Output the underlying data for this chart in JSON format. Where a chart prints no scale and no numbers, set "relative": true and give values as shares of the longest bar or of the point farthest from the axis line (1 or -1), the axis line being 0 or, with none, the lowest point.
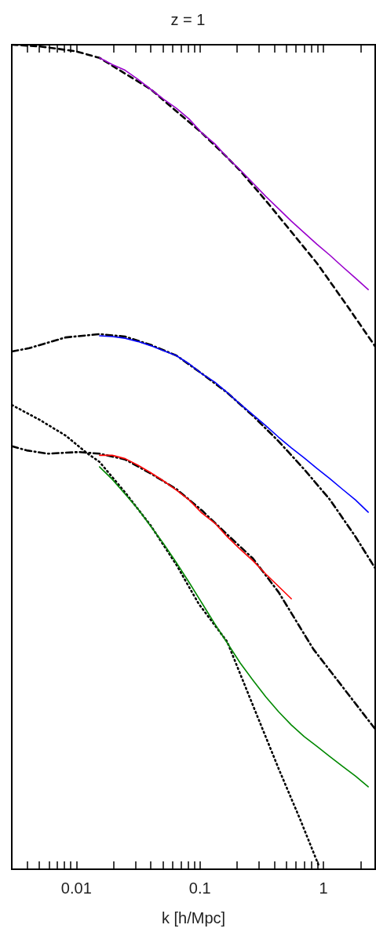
{
  "chart_data": {
    "type": "line",
    "title": "z = 1",
    "xlabel": "k [h/Mpc]",
    "relative": true,
    "log": "x",
    "grid": false,
    "marker": "none",
    "xlim": [
      0.003,
      2.62
    ],
    "xticks": [
      {
        "value": 0.004,
        "label": null
      },
      {
        "value": 0.005,
        "label": null
      },
      {
        "value": 0.006,
        "label": null
      },
      {
        "value": 0.007,
        "label": null
      },
      {
        "value": 0.008,
        "label": null
      },
      {
        "value": 0.009,
        "label": null
      },
      0.01,
      {
        "value": 0.02,
        "label": null
      },
      {
        "value": 0.03,
        "label": null
      },
      {
        "value": 0.04,
        "label": null
      },
      {
        "value": 0.05,
        "label": null
      },
      {
        "value": 0.06,
        "label": null
      },
      {
        "value": 0.07,
        "label": null
      },
      {
        "value": 0.08,
        "label": null
      },
      {
        "value": 0.09,
        "label": null
      },
      0.1,
      {
        "value": 0.2,
        "label": null
      },
      {
        "value": 0.3,
        "label": null
      },
      {
        "value": 0.4,
        "label": null
      },
      {
        "value": 0.5,
        "label": null
      },
      {
        "value": 0.6,
        "label": null
      },
      {
        "value": 0.7,
        "label": null
      },
      {
        "value": 0.8,
        "label": null
      },
      {
        "value": 0.9,
        "label": null
      },
      1,
      {
        "value": 2,
        "label": null
      }
    ],
    "series": [
      {
        "color": "#000000",
        "line_style": "dashed",
        "x": [
          0.00301,
          0.00505,
          0.00995,
          0.0154,
          0.0399,
          0.1035,
          0.167,
          0.212,
          0.341,
          0.55,
          0.885,
          1.56,
          2.62
        ],
        "values": [
          1.0,
          0.998,
          0.992,
          0.984,
          0.946,
          0.893,
          0.863,
          0.847,
          0.811,
          0.773,
          0.735,
          0.683,
          0.634
        ]
      },
      {
        "color": "#000000",
        "line_style": "dashdot",
        "x": [
          0.00301,
          0.00415,
          0.00818,
          0.0154,
          0.0248,
          0.0399,
          0.0646,
          0.104,
          0.166,
          0.268,
          0.433,
          0.698,
          1.13,
          1.82,
          2.62
        ],
        "values": [
          0.628,
          0.632,
          0.645,
          0.649,
          0.646,
          0.636,
          0.623,
          0.601,
          0.578,
          0.55,
          0.519,
          0.485,
          0.448,
          0.403,
          0.365
        ]
      },
      {
        "color": "#000000",
        "line_style": "dashdot",
        "x": [
          0.00301,
          0.00396,
          0.00583,
          0.01045,
          0.0154,
          0.0248,
          0.0399,
          0.0646,
          0.104,
          0.166,
          0.268,
          0.433,
          0.827,
          2.62
        ],
        "values": [
          0.513,
          0.508,
          0.504,
          0.506,
          0.504,
          0.497,
          0.48,
          0.461,
          0.435,
          0.406,
          0.377,
          0.336,
          0.267,
          0.17
        ]
      },
      {
        "color": "#000000",
        "line_style": "dotted",
        "x": [
          0.00301,
          0.00505,
          0.00818,
          0.0121,
          0.0154,
          0.0248,
          0.0399,
          0.0646,
          0.0976,
          0.166,
          0.268,
          0.436,
          0.649,
          0.912
        ],
        "values": [
          0.563,
          0.545,
          0.526,
          0.505,
          0.494,
          0.457,
          0.417,
          0.369,
          0.322,
          0.276,
          0.199,
          0.121,
          0.06,
          0.005
        ]
      },
      {
        "color": "#9900cc",
        "line_style": "solid",
        "x": [
          0.0154,
          0.0195,
          0.0248,
          0.0315,
          0.0399,
          0.0507,
          0.0643,
          0.0816,
          0.1035,
          0.1314,
          0.167,
          0.212,
          0.269,
          0.341,
          0.433,
          0.549,
          0.697,
          0.885,
          1.12,
          1.42,
          1.81,
          2.3
        ],
        "values": [
          0.984,
          0.976,
          0.969,
          0.958,
          0.946,
          0.934,
          0.923,
          0.91,
          0.893,
          0.88,
          0.863,
          0.848,
          0.832,
          0.816,
          0.801,
          0.786,
          0.772,
          0.758,
          0.745,
          0.731,
          0.717,
          0.703
        ]
      },
      {
        "color": "#0000ff",
        "line_style": "solid",
        "x": [
          0.0154,
          0.0195,
          0.0248,
          0.0315,
          0.0399,
          0.0507,
          0.0643,
          0.0816,
          0.1035,
          0.1314,
          0.167,
          0.212,
          0.269,
          0.341,
          0.433,
          0.549,
          0.697,
          0.885,
          1.12,
          1.42,
          1.81,
          2.3
        ],
        "values": [
          0.647,
          0.646,
          0.644,
          0.64,
          0.635,
          0.629,
          0.623,
          0.613,
          0.601,
          0.591,
          0.578,
          0.564,
          0.551,
          0.538,
          0.524,
          0.511,
          0.499,
          0.486,
          0.474,
          0.461,
          0.448,
          0.433
        ]
      },
      {
        "color": "#ff0000",
        "line_style": "solid",
        "x": [
          0.0154,
          0.0195,
          0.0248,
          0.0315,
          0.0399,
          0.0507,
          0.0643,
          0.0816,
          0.1035,
          0.1314,
          0.167,
          0.212,
          0.269,
          0.341,
          0.433,
          0.549
        ],
        "values": [
          0.502,
          0.502,
          0.498,
          0.49,
          0.481,
          0.471,
          0.46,
          0.448,
          0.432,
          0.42,
          0.403,
          0.388,
          0.374,
          0.358,
          0.343,
          0.328
        ]
      },
      {
        "color": "#008800",
        "line_style": "solid",
        "x": [
          0.0154,
          0.0195,
          0.0248,
          0.0315,
          0.0399,
          0.0507,
          0.0643,
          0.0816,
          0.1035,
          0.1314,
          0.167,
          0.212,
          0.269,
          0.341,
          0.433,
          0.549,
          0.697,
          0.885,
          1.12,
          1.42,
          1.81,
          2.3
        ],
        "values": [
          0.488,
          0.473,
          0.455,
          0.437,
          0.416,
          0.395,
          0.372,
          0.348,
          0.323,
          0.298,
          0.274,
          0.25,
          0.229,
          0.209,
          0.191,
          0.175,
          0.161,
          0.149,
          0.137,
          0.125,
          0.113,
          0.1
        ]
      }
    ]
  }
}
